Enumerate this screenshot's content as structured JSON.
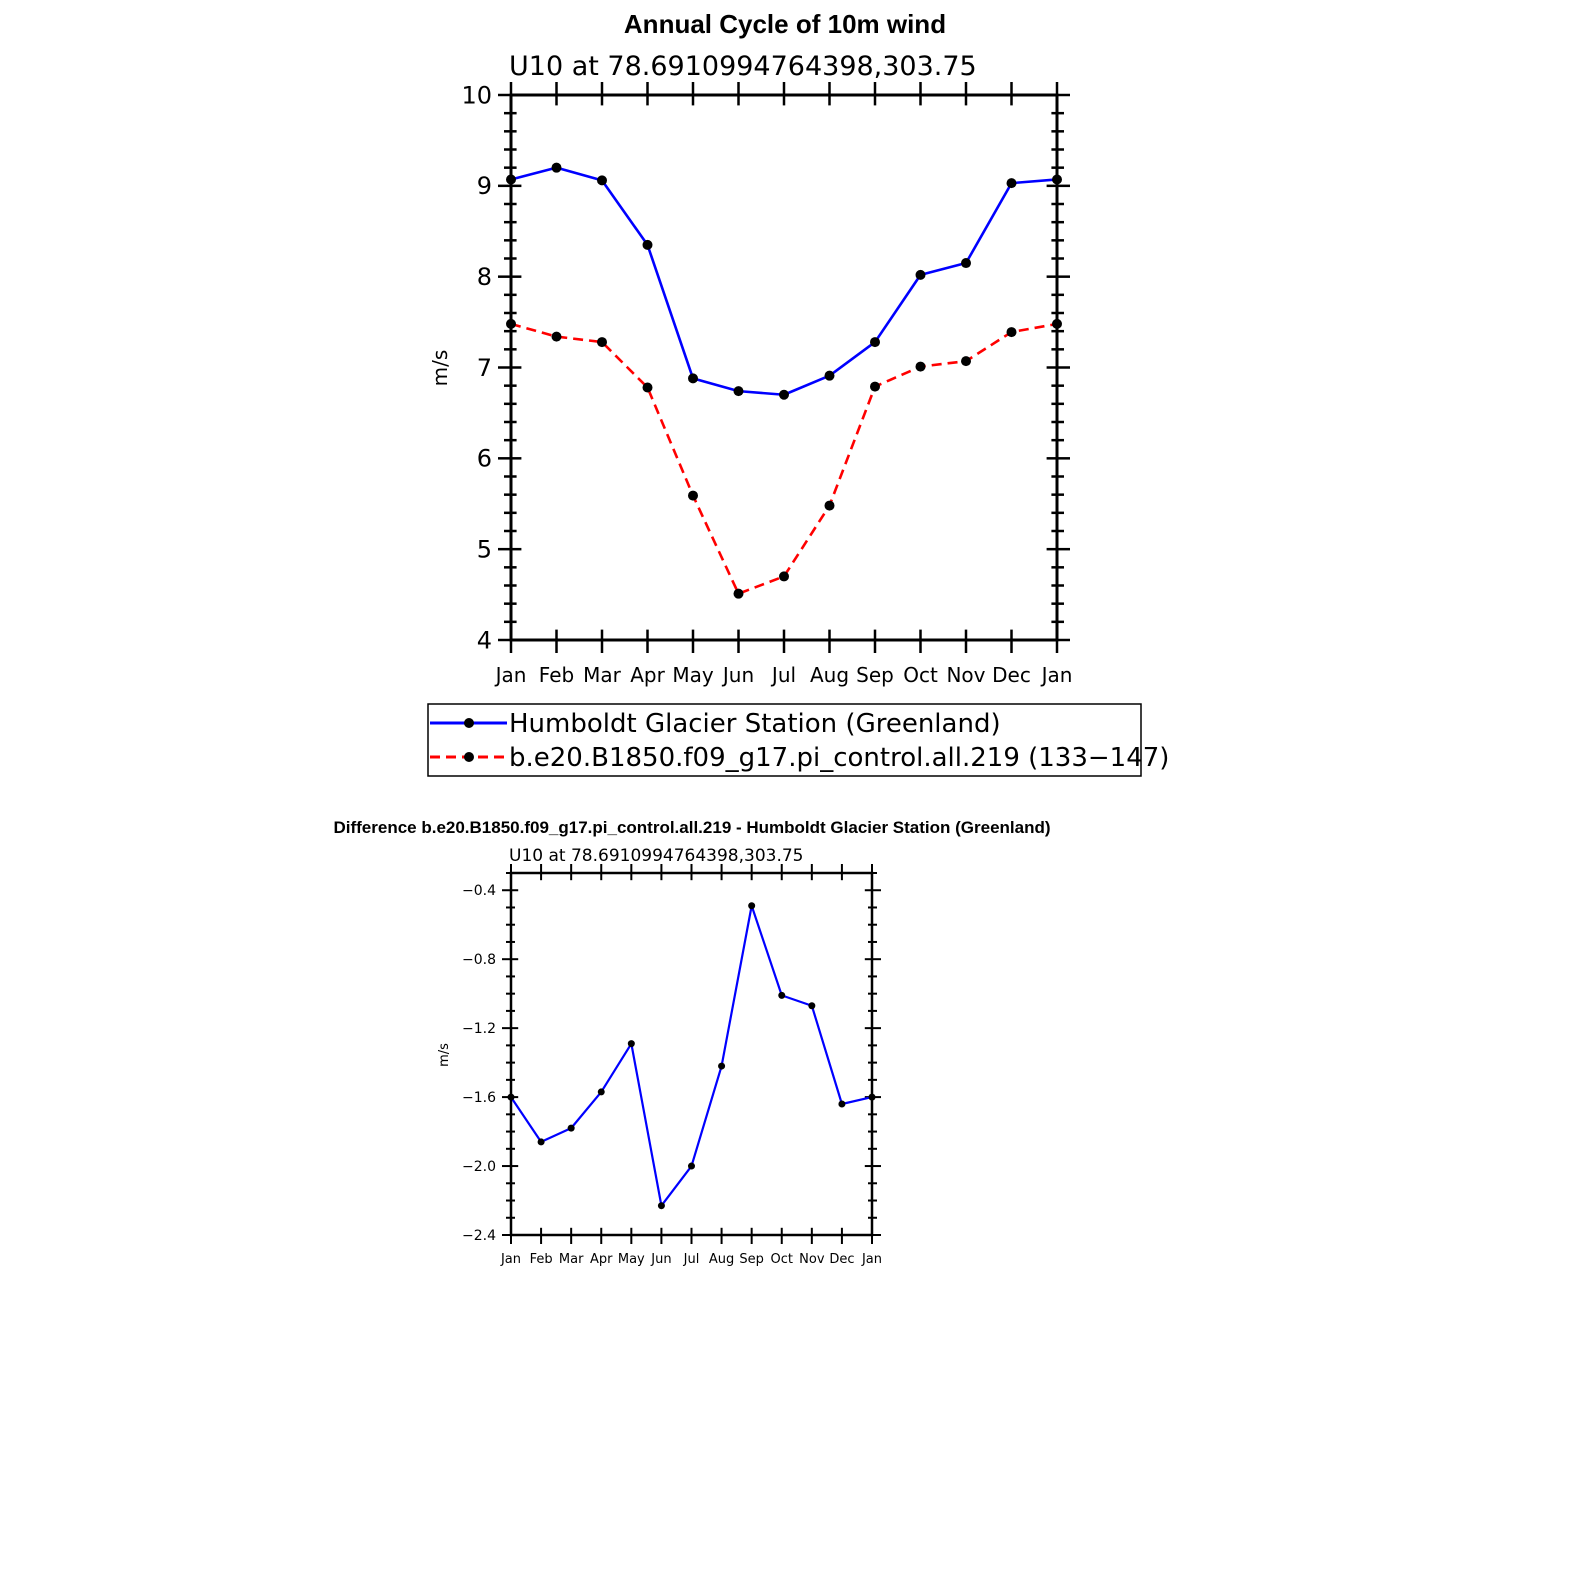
{
  "chart_data": [
    {
      "type": "line",
      "title": "Annual Cycle of 10m wind",
      "subtitle": "U10 at 78.6910994764398,303.75",
      "xlabel": "",
      "ylabel": "m/s",
      "ylim": [
        4,
        10
      ],
      "yticks": [
        "4",
        "5",
        "6",
        "7",
        "8",
        "9",
        "10"
      ],
      "categories": [
        "Jan",
        "Feb",
        "Mar",
        "Apr",
        "May",
        "Jun",
        "Jul",
        "Aug",
        "Sep",
        "Oct",
        "Nov",
        "Dec",
        "Jan"
      ],
      "legend_position": "bottom",
      "series": [
        {
          "name": "Humboldt Glacier Station (Greenland)",
          "color": "#0000ff",
          "dash": "solid",
          "values": [
            9.07,
            9.2,
            9.06,
            8.35,
            6.88,
            6.74,
            6.7,
            6.91,
            7.28,
            8.02,
            8.15,
            9.03,
            9.07
          ]
        },
        {
          "name": "b.e20.B1850.f09_g17.pi_control.all.219 (133−147)",
          "color": "#ff0000",
          "dash": "dashed",
          "values": [
            7.48,
            7.34,
            7.28,
            6.78,
            5.59,
            4.51,
            4.7,
            5.48,
            6.79,
            7.01,
            7.07,
            7.39,
            7.48
          ]
        }
      ]
    },
    {
      "type": "line",
      "title": "Difference b.e20.B1850.f09_g17.pi_control.all.219 - Humboldt Glacier Station (Greenland)",
      "subtitle": "U10 at 78.6910994764398,303.75",
      "xlabel": "",
      "ylabel": "m/s",
      "ylim": [
        -2.4,
        -0.3
      ],
      "yticks": [
        "−2.4",
        "−2.0",
        "−1.6",
        "−1.2",
        "−0.8",
        "−0.4"
      ],
      "categories": [
        "Jan",
        "Feb",
        "Mar",
        "Apr",
        "May",
        "Jun",
        "Jul",
        "Aug",
        "Sep",
        "Oct",
        "Nov",
        "Dec",
        "Jan"
      ],
      "series": [
        {
          "color": "#0000ff",
          "values": [
            -1.6,
            -1.86,
            -1.78,
            -1.57,
            -1.29,
            -2.23,
            -2.0,
            -1.42,
            -0.49,
            -1.01,
            -1.07,
            -1.64,
            -1.6
          ]
        }
      ]
    }
  ]
}
